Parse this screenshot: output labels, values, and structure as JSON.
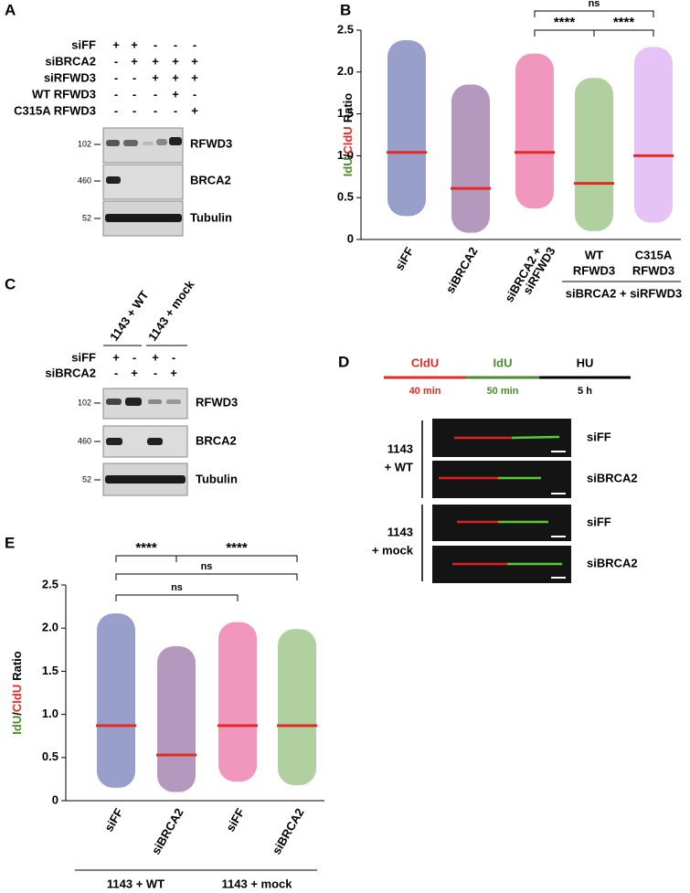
{
  "panels": {
    "A": {
      "label": "A",
      "rows": [
        {
          "name": "siFF",
          "signs": [
            "+",
            "+",
            "-",
            "-",
            "-"
          ]
        },
        {
          "name": "siBRCA2",
          "signs": [
            "-",
            "+",
            "+",
            "+",
            "+"
          ]
        },
        {
          "name": "siRFWD3",
          "signs": [
            "-",
            "-",
            "+",
            "+",
            "+"
          ]
        },
        {
          "name": "WT RFWD3",
          "signs": [
            "-",
            "-",
            "-",
            "+",
            "-"
          ]
        },
        {
          "name": "C315A RFWD3",
          "signs": [
            "-",
            "-",
            "-",
            "-",
            "+"
          ]
        }
      ],
      "blots": [
        {
          "mw": "102",
          "name": "RFWD3"
        },
        {
          "mw": "460",
          "name": "BRCA2"
        },
        {
          "mw": "52",
          "name": "Tubulin"
        }
      ]
    },
    "C": {
      "label": "C",
      "groups": [
        "1143 + WT",
        "1143 + mock"
      ],
      "rows": [
        {
          "name": "siFF",
          "signs": [
            "+",
            "-",
            "+",
            "-"
          ]
        },
        {
          "name": "siBRCA2",
          "signs": [
            "-",
            "+",
            "-",
            "+"
          ]
        }
      ],
      "blots": [
        {
          "mw": "102",
          "name": "RFWD3"
        },
        {
          "mw": "460",
          "name": "BRCA2"
        },
        {
          "mw": "52",
          "name": "Tubulin"
        }
      ]
    },
    "D": {
      "label": "D",
      "timeline": [
        {
          "name": "CldU",
          "duration": "40 min",
          "color": "#e32b24"
        },
        {
          "name": "IdU",
          "duration": "50 min",
          "color": "#4b8b2c"
        },
        {
          "name": "HU",
          "duration": "5 h",
          "color": "#000000"
        }
      ],
      "groups": [
        "1143",
        "+ WT",
        "1143",
        "+ mock"
      ],
      "rows": [
        "siFF",
        "siBRCA2",
        "siFF",
        "siBRCA2"
      ]
    }
  },
  "chart_data": [
    {
      "type": "dot",
      "label": "B",
      "y_label": [
        {
          "text": "IdU",
          "color": "#4b8b2c"
        },
        {
          "text": "/",
          "color": "#000000"
        },
        {
          "text": "CldU",
          "color": "#e32b24"
        },
        {
          "text": "Ratio",
          "color": "#000000"
        }
      ],
      "categories": [
        [
          "siFF"
        ],
        [
          "siBRCA2"
        ],
        [
          "siBRCA2 +",
          "siRFWD3"
        ],
        [
          "WT",
          "RFWD3"
        ],
        [
          "C315A",
          "RFWD3"
        ]
      ],
      "group_label": "siBRCA2 + siRFWD3",
      "colors": [
        "#1b2a8c",
        "#5b1a6f",
        "#e0186f",
        "#4f9a2a",
        "#c57de8"
      ],
      "values": [
        1.04,
        0.61,
        1.04,
        0.67,
        1.0
      ],
      "ranges": [
        [
          0.28,
          2.38
        ],
        [
          0.08,
          1.85
        ],
        [
          0.37,
          2.22
        ],
        [
          0.1,
          1.93
        ],
        [
          0.2,
          2.3
        ]
      ],
      "median_color": "#e32b24",
      "comparisons": [
        "ns",
        "****",
        "****"
      ],
      "ylim": [
        0,
        2.5
      ],
      "yticks": [
        0,
        0.5,
        {
          "value": 1,
          "label": "1.0"
        },
        1.5,
        {
          "value": 2,
          "label": "2.0"
        },
        2.5
      ]
    },
    {
      "type": "dot",
      "label": "E",
      "y_label": [
        {
          "text": "IdU",
          "color": "#4b8b2c"
        },
        {
          "text": "/",
          "color": "#000000"
        },
        {
          "text": "CldU",
          "color": "#e32b24"
        },
        {
          "text": "Ratio",
          "color": "#000000"
        }
      ],
      "categories": [
        [
          "siFF"
        ],
        [
          "siBRCA2"
        ],
        [
          "siFF"
        ],
        [
          "siBRCA2"
        ]
      ],
      "groups": [
        "1143 + WT",
        "1143 + mock"
      ],
      "colors": [
        "#1b2a8c",
        "#5b1a6f",
        "#e0186f",
        "#4f9a2a"
      ],
      "values": [
        0.87,
        0.53,
        0.87,
        0.87
      ],
      "ranges": [
        [
          0.15,
          2.17
        ],
        [
          0.1,
          1.79
        ],
        [
          0.22,
          2.07
        ],
        [
          0.18,
          1.99
        ]
      ],
      "median_color": "#e32b24",
      "comparisons": [
        "****",
        "****",
        "ns",
        "ns"
      ],
      "ylim": [
        0,
        2.5
      ],
      "yticks": [
        0,
        0.5,
        {
          "value": 1,
          "label": "1.0"
        },
        1.5,
        {
          "value": 2,
          "label": "2.0"
        },
        2.5
      ]
    }
  ]
}
